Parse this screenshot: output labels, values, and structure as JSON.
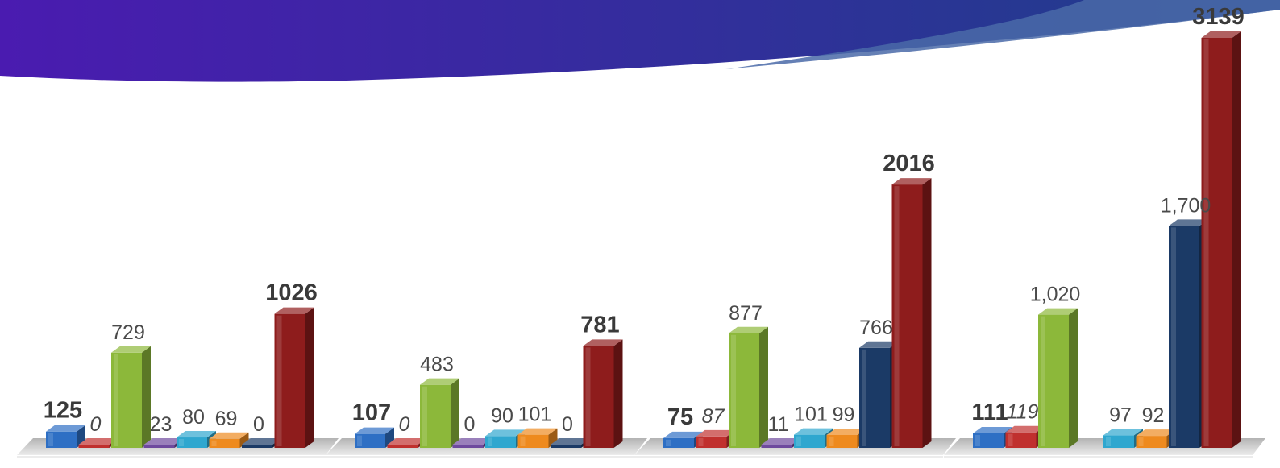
{
  "banner": {
    "gradient_start": "#4A1BB0",
    "gradient_end": "#1E3F8A",
    "swoosh": "#4A6AA8"
  },
  "chart_data": {
    "type": "bar",
    "style": "3d-columns",
    "grid": false,
    "legend": "none",
    "ylim": [
      0,
      3200
    ],
    "series_colors": [
      "#2E6FC4",
      "#C0302E",
      "#8CB83A",
      "#6E4A9E",
      "#2FA7CF",
      "#EE8A1E",
      "#1B3A66",
      "#8E1C1C"
    ],
    "groups": [
      {
        "bars": [
          {
            "value": 125,
            "label": "125",
            "bold": true,
            "color_index": 0
          },
          {
            "value": 0,
            "label": "0",
            "italic": true,
            "color_index": 1
          },
          {
            "value": 729,
            "label": "729",
            "color_index": 2
          },
          {
            "value": 23,
            "label": "23",
            "color_index": 3
          },
          {
            "value": 80,
            "label": "80",
            "color_index": 4
          },
          {
            "value": 69,
            "label": "69",
            "color_index": 5
          },
          {
            "value": 0,
            "label": "0",
            "color_index": 6
          },
          {
            "value": 1026,
            "label": "1026",
            "bold": true,
            "color_index": 7
          }
        ]
      },
      {
        "bars": [
          {
            "value": 107,
            "label": "107",
            "bold": true,
            "color_index": 0
          },
          {
            "value": 0,
            "label": "0",
            "italic": true,
            "color_index": 1
          },
          {
            "value": 483,
            "label": "483",
            "color_index": 2
          },
          {
            "value": 0,
            "label": "0",
            "color_index": 3
          },
          {
            "value": 90,
            "label": "90",
            "color_index": 4
          },
          {
            "value": 101,
            "label": "101",
            "color_index": 5
          },
          {
            "value": 0,
            "label": "0",
            "color_index": 6
          },
          {
            "value": 781,
            "label": "781",
            "bold": true,
            "color_index": 7
          }
        ]
      },
      {
        "bars": [
          {
            "value": 75,
            "label": "75",
            "bold": true,
            "color_index": 0
          },
          {
            "value": 87,
            "label": "87",
            "italic": true,
            "color_index": 1
          },
          {
            "value": 877,
            "label": "877",
            "color_index": 2
          },
          {
            "value": 11,
            "label": "11",
            "color_index": 3
          },
          {
            "value": 101,
            "label": "101",
            "color_index": 4
          },
          {
            "value": 99,
            "label": "99",
            "color_index": 5
          },
          {
            "value": 766,
            "label": "766",
            "color_index": 6
          },
          {
            "value": 2016,
            "label": "2016",
            "bold": true,
            "color_index": 7
          }
        ]
      },
      {
        "bars": [
          {
            "value": 111,
            "label": "111",
            "bold": true,
            "color_index": 0
          },
          {
            "value": 119,
            "label": "119",
            "italic": true,
            "color_index": 1
          },
          {
            "value": 1020,
            "label": "1,020",
            "color_index": 2
          },
          {
            "value": null,
            "label": "",
            "color_index": 3
          },
          {
            "value": 97,
            "label": "97",
            "color_index": 4
          },
          {
            "value": 92,
            "label": "92",
            "color_index": 5
          },
          {
            "value": 1700,
            "label": "1,700",
            "color_index": 6
          },
          {
            "value": 3139,
            "label": "3139",
            "bold": true,
            "color_index": 7
          }
        ]
      }
    ]
  }
}
